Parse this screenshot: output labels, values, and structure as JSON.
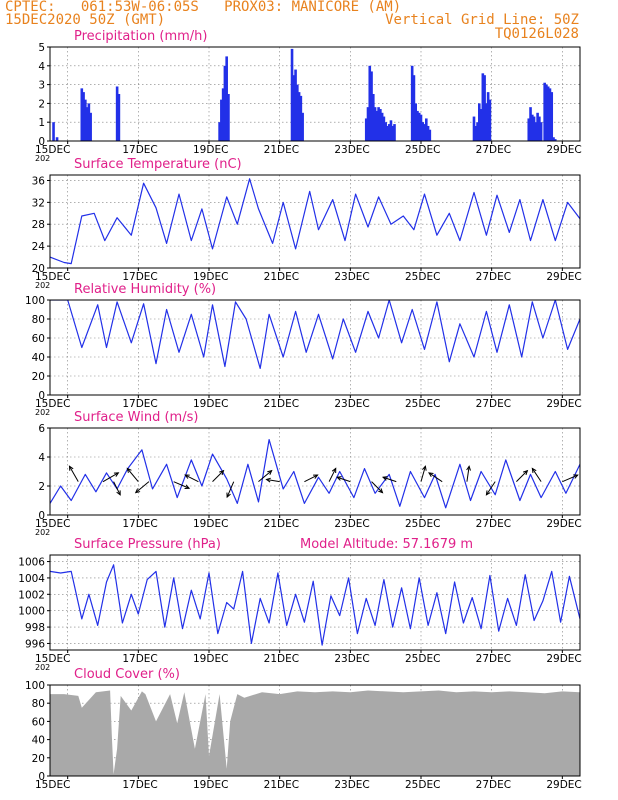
{
  "header": {
    "line1": "CPTEC:   061:53W-06:05S   PROX03: MANICORE (AM)",
    "line2_left": "15DEC2020 50Z (GMT)",
    "line2_right": "Vertical Grid Line: 50Z",
    "line3_right": "TQ0126L028"
  },
  "colors": {
    "header": "#e8821e",
    "title": "#e0208a",
    "series": "#2230e8",
    "cloud": "#a9a9a9",
    "grid": "#808080"
  },
  "x_axis": {
    "ticks": [
      "15DEC",
      "17DEC",
      "19DEC",
      "21DEC",
      "23DEC",
      "25DEC",
      "27DEC",
      "29DEC"
    ],
    "year_fragment": "202"
  },
  "chart_data": [
    {
      "type": "bar",
      "title": "Precipitation (mm/h)",
      "ylim": [
        0,
        5
      ],
      "yticks": [
        "0",
        "1",
        "2",
        "3",
        "4",
        "5"
      ],
      "grid": "dashed",
      "x": [
        0.1,
        0.2,
        0.9,
        0.95,
        1.0,
        1.05,
        1.1,
        1.15,
        1.9,
        1.95,
        4.8,
        4.85,
        4.9,
        4.95,
        5.0,
        5.05,
        6.85,
        6.9,
        6.95,
        7.0,
        7.05,
        7.1,
        7.15,
        8.95,
        9.0,
        9.05,
        9.1,
        9.15,
        9.2,
        9.25,
        9.3,
        9.35,
        9.4,
        9.45,
        9.5,
        9.55,
        9.6,
        9.65,
        9.7,
        9.75,
        10.25,
        10.3,
        10.35,
        10.4,
        10.45,
        10.5,
        10.55,
        10.6,
        10.65,
        10.7,
        10.75,
        12.0,
        12.05,
        12.1,
        12.15,
        12.2,
        12.25,
        12.3,
        12.35,
        12.4,
        12.45,
        13.55,
        13.6,
        13.65,
        13.7,
        13.75,
        13.8,
        13.85,
        13.9,
        14.0,
        14.05,
        14.1,
        14.15,
        14.2,
        14.25,
        14.3,
        14.35,
        14.4,
        14.45,
        14.5,
        14.55,
        14.6,
        14.65,
        14.7
      ],
      "values": [
        1.0,
        0.2,
        2.8,
        2.6,
        2.2,
        1.8,
        2.0,
        1.5,
        2.9,
        2.5,
        1.0,
        2.2,
        2.8,
        4.0,
        4.5,
        2.5,
        4.9,
        3.5,
        3.8,
        3.0,
        2.6,
        2.4,
        1.5,
        1.2,
        1.8,
        4.0,
        3.7,
        2.5,
        1.8,
        1.6,
        1.8,
        1.7,
        1.5,
        1.3,
        1.0,
        0.8,
        0.9,
        1.1,
        0.8,
        0.9,
        4.0,
        3.5,
        2.0,
        1.6,
        1.5,
        1.4,
        1.0,
        0.9,
        1.2,
        0.8,
        0.6,
        1.3,
        0.8,
        1.0,
        2.0,
        1.7,
        3.6,
        3.5,
        2.0,
        2.6,
        2.2,
        1.2,
        1.8,
        1.4,
        1.3,
        1.0,
        1.5,
        1.3,
        1.0,
        3.1,
        3.0,
        2.9,
        2.8,
        2.6,
        0.2,
        0.1,
        0.0,
        0.0,
        0.0,
        0.0,
        0.0,
        0.0,
        0.0,
        0.0
      ]
    },
    {
      "type": "line",
      "title": "Surface Temperature (nC)",
      "ylim": [
        20,
        37
      ],
      "yticks": [
        "20",
        "24",
        "28",
        "32",
        "36"
      ],
      "grid": "dashed",
      "x": [
        0,
        0.4,
        0.6,
        0.9,
        1.25,
        1.55,
        1.9,
        2.3,
        2.65,
        3.0,
        3.3,
        3.65,
        4.0,
        4.3,
        4.6,
        5.0,
        5.3,
        5.65,
        5.9,
        6.3,
        6.6,
        6.95,
        7.35,
        7.6,
        8.0,
        8.35,
        8.65,
        9.0,
        9.3,
        9.65,
        10.0,
        10.3,
        10.6,
        10.95,
        11.3,
        11.6,
        12.0,
        12.35,
        12.65,
        13.0,
        13.3,
        13.6,
        13.95,
        14.3,
        14.65,
        15.0
      ],
      "values": [
        22,
        21,
        20.8,
        29.5,
        30,
        25,
        29.2,
        26,
        35.5,
        31,
        24.5,
        33.5,
        25,
        30.8,
        23.5,
        33,
        28,
        36.3,
        30.8,
        24.5,
        32,
        23.5,
        34,
        27,
        32.5,
        25,
        33.5,
        27.5,
        33,
        28,
        29.5,
        27,
        33.5,
        26,
        30,
        25,
        33.8,
        26,
        33.3,
        26.5,
        32.5,
        25,
        32.5,
        25,
        32,
        29
      ]
    },
    {
      "type": "line",
      "title": "Relative Humidity (%)",
      "ylim": [
        0,
        100
      ],
      "yticks": [
        "0",
        "20",
        "40",
        "60",
        "80",
        "100"
      ],
      "grid": "dashed",
      "x": [
        0,
        0.5,
        0.9,
        1.35,
        1.6,
        1.9,
        2.3,
        2.65,
        3.0,
        3.3,
        3.65,
        4.0,
        4.35,
        4.6,
        4.95,
        5.25,
        5.55,
        5.95,
        6.2,
        6.6,
        6.95,
        7.25,
        7.6,
        8.0,
        8.3,
        8.65,
        9.0,
        9.3,
        9.6,
        9.95,
        10.25,
        10.6,
        10.95,
        11.3,
        11.6,
        12.0,
        12.35,
        12.65,
        13.0,
        13.35,
        13.65,
        13.95,
        14.3,
        14.65,
        15.0
      ],
      "values": [
        100,
        100,
        50,
        95,
        50,
        98,
        55,
        96,
        33,
        90,
        45,
        85,
        40,
        95,
        30,
        98,
        80,
        28,
        85,
        40,
        88,
        45,
        85,
        38,
        80,
        45,
        88,
        60,
        100,
        55,
        90,
        48,
        98,
        35,
        75,
        40,
        88,
        45,
        95,
        40,
        98,
        60,
        100,
        48,
        80
      ]
    },
    {
      "type": "line",
      "title": "Surface Wind (m/s)",
      "ylim": [
        0,
        6
      ],
      "yticks": [
        "0",
        "2",
        "4",
        "6"
      ],
      "grid": "dashed",
      "x": [
        0,
        0.3,
        0.6,
        1.0,
        1.3,
        1.6,
        1.9,
        2.2,
        2.6,
        2.9,
        3.3,
        3.6,
        4.0,
        4.3,
        4.6,
        5.0,
        5.3,
        5.6,
        5.9,
        6.2,
        6.6,
        6.9,
        7.2,
        7.6,
        7.9,
        8.2,
        8.6,
        8.9,
        9.2,
        9.6,
        9.9,
        10.2,
        10.6,
        10.9,
        11.2,
        11.6,
        11.9,
        12.2,
        12.6,
        12.9,
        13.3,
        13.6,
        13.9,
        14.3,
        14.6,
        15.0
      ],
      "values": [
        0.8,
        2.0,
        1.0,
        2.8,
        1.6,
        2.9,
        1.8,
        3.2,
        4.5,
        1.8,
        3.5,
        1.2,
        3.8,
        2.0,
        4.2,
        2.5,
        0.8,
        3.5,
        0.9,
        5.2,
        1.8,
        3.0,
        0.8,
        2.6,
        1.5,
        3.0,
        1.2,
        3.2,
        1.5,
        2.8,
        0.6,
        3.0,
        1.2,
        2.8,
        0.5,
        3.5,
        1.0,
        3.0,
        1.4,
        3.8,
        1.0,
        2.8,
        1.2,
        3.0,
        1.5,
        3.5
      ],
      "arrows": [
        {
          "x": 0.8,
          "y": 2.3,
          "u": -0.4,
          "v": 0.7
        },
        {
          "x": 1.5,
          "y": 2.3,
          "u": 0.7,
          "v": 0.4
        },
        {
          "x": 1.8,
          "y": 2.3,
          "u": 0.3,
          "v": -0.6
        },
        {
          "x": 2.5,
          "y": 2.3,
          "u": -0.5,
          "v": 0.6
        },
        {
          "x": 2.8,
          "y": 2.3,
          "u": -0.6,
          "v": -0.5
        },
        {
          "x": 3.5,
          "y": 2.3,
          "u": 0.7,
          "v": -0.3
        },
        {
          "x": 4.2,
          "y": 2.3,
          "u": -0.6,
          "v": 0.3
        },
        {
          "x": 4.6,
          "y": 2.3,
          "u": 0.5,
          "v": 0.5
        },
        {
          "x": 5.2,
          "y": 2.3,
          "u": -0.3,
          "v": -0.7
        },
        {
          "x": 5.9,
          "y": 2.3,
          "u": 0.6,
          "v": 0.5
        },
        {
          "x": 6.5,
          "y": 2.3,
          "u": -0.6,
          "v": 0.1
        },
        {
          "x": 7.2,
          "y": 2.3,
          "u": 0.6,
          "v": 0.3
        },
        {
          "x": 7.9,
          "y": 2.3,
          "u": 0.3,
          "v": 0.6
        },
        {
          "x": 8.5,
          "y": 2.3,
          "u": -0.6,
          "v": 0.2
        },
        {
          "x": 9.1,
          "y": 2.3,
          "u": 0.5,
          "v": -0.5
        },
        {
          "x": 9.8,
          "y": 2.3,
          "u": -0.6,
          "v": 0.2
        },
        {
          "x": 10.5,
          "y": 2.3,
          "u": 0.2,
          "v": 0.7
        },
        {
          "x": 11.1,
          "y": 2.3,
          "u": -0.6,
          "v": 0.4
        },
        {
          "x": 11.8,
          "y": 2.3,
          "u": 0.1,
          "v": 0.7
        },
        {
          "x": 12.6,
          "y": 2.3,
          "u": -0.4,
          "v": -0.6
        },
        {
          "x": 13.2,
          "y": 2.3,
          "u": 0.5,
          "v": 0.5
        },
        {
          "x": 13.9,
          "y": 2.3,
          "u": -0.4,
          "v": 0.6
        },
        {
          "x": 14.5,
          "y": 2.3,
          "u": 0.7,
          "v": 0.3
        }
      ]
    },
    {
      "type": "line",
      "title": "Surface Pressure (hPa)",
      "annotation": "Model Altitude: 57.1679 m",
      "ylim": [
        995.2,
        1006.8
      ],
      "yticks": [
        "996",
        "998",
        "1000",
        "1002",
        "1004",
        "1006"
      ],
      "grid": "dashed",
      "x": [
        0,
        0.3,
        0.6,
        0.9,
        1.1,
        1.35,
        1.6,
        1.8,
        2.05,
        2.3,
        2.5,
        2.75,
        3.0,
        3.25,
        3.5,
        3.75,
        4.0,
        4.25,
        4.5,
        4.75,
        5.0,
        5.2,
        5.45,
        5.7,
        5.95,
        6.2,
        6.45,
        6.7,
        6.95,
        7.2,
        7.45,
        7.7,
        7.95,
        8.2,
        8.45,
        8.7,
        8.95,
        9.2,
        9.45,
        9.7,
        9.95,
        10.2,
        10.45,
        10.7,
        10.95,
        11.2,
        11.45,
        11.7,
        11.95,
        12.2,
        12.45,
        12.7,
        12.95,
        13.2,
        13.45,
        13.7,
        13.95,
        14.2,
        14.45,
        14.7,
        15.0
      ],
      "values": [
        1004.8,
        1004.6,
        1004.8,
        999.0,
        1002.0,
        998.2,
        1003.5,
        1005.6,
        998.5,
        1002.0,
        999.6,
        1003.8,
        1004.8,
        998.0,
        1004.0,
        997.8,
        1002.5,
        999.0,
        1004.6,
        997.2,
        1001.0,
        1000.2,
        1004.8,
        996.0,
        1001.5,
        998.5,
        1004.6,
        998.2,
        1002.0,
        998.6,
        1003.6,
        995.8,
        1001.8,
        999.4,
        1004.0,
        997.2,
        1001.5,
        998.2,
        1003.8,
        998.0,
        1002.8,
        997.8,
        1004.0,
        998.2,
        1002.2,
        997.2,
        1003.5,
        998.5,
        1001.6,
        997.8,
        1004.3,
        997.5,
        1001.5,
        998.2,
        1004.4,
        998.8,
        1001.2,
        1004.8,
        998.6,
        1004.2,
        999.0
      ]
    },
    {
      "type": "area",
      "title": "Cloud Cover (%)",
      "ylim": [
        0,
        100
      ],
      "yticks": [
        "0",
        "20",
        "40",
        "60",
        "80",
        "100"
      ],
      "grid": "dashed",
      "x": [
        0,
        0.4,
        0.8,
        0.9,
        1.3,
        1.7,
        1.75,
        1.8,
        1.9,
        2.0,
        2.3,
        2.6,
        2.7,
        3.0,
        3.4,
        3.6,
        3.8,
        4.1,
        4.4,
        4.5,
        4.8,
        5.0,
        5.1,
        5.3,
        5.5,
        6.0,
        6.5,
        7.0,
        7.5,
        8.0,
        8.5,
        9.0,
        9.5,
        10.0,
        10.5,
        11.0,
        11.5,
        12.0,
        12.5,
        13.0,
        13.5,
        14.0,
        14.5,
        15.0
      ],
      "values": [
        90,
        90,
        88,
        75,
        92,
        94,
        45,
        2,
        30,
        88,
        72,
        93,
        90,
        60,
        90,
        58,
        92,
        30,
        90,
        22,
        90,
        8,
        60,
        90,
        86,
        92,
        90,
        93,
        92,
        93,
        92,
        94,
        93,
        92,
        93,
        94,
        92,
        93,
        92,
        93,
        92,
        91,
        93,
        92
      ]
    }
  ]
}
